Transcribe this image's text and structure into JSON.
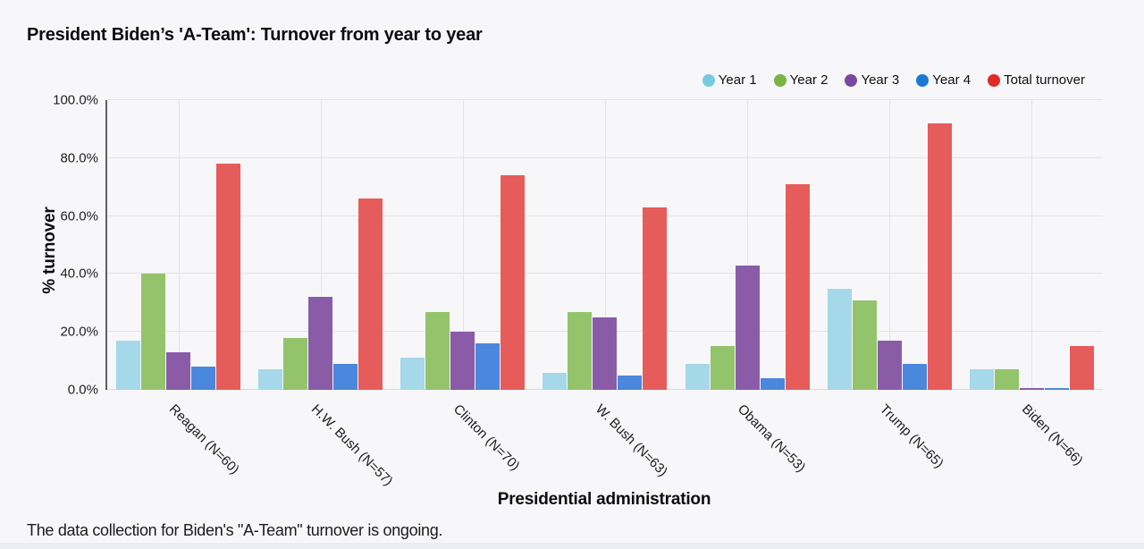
{
  "page": {
    "title": "President Biden’s 'A-Team': Turnover from year to year",
    "footnote": "The data collection for Biden's \"A-Team\" turnover is ongoing."
  },
  "chart_data": {
    "type": "bar",
    "title": "President Biden’s 'A-Team': Turnover from year to year",
    "xlabel": "Presidential administration",
    "ylabel": "% turnover",
    "ylim": [
      0,
      100
    ],
    "yticks": [
      "0.0%",
      "20.0%",
      "40.0%",
      "60.0%",
      "80.0%",
      "100.0%"
    ],
    "grid": true,
    "legend_position": "top-right",
    "categories": [
      "Reagan (N=60)",
      "H.W. Bush (N=57)",
      "Clinton (N=70)",
      "W. Bush (N=63)",
      "Obama (N=53)",
      "Trump (N=65)",
      "Biden (N=66)"
    ],
    "series": [
      {
        "name": "Year 1",
        "legend_color": "#79c9e2",
        "bar_color": "#a5d8e9",
        "values": [
          17,
          7,
          11,
          6,
          9,
          35,
          7
        ]
      },
      {
        "name": "Year 2",
        "legend_color": "#77b544",
        "bar_color": "#93c46c",
        "values": [
          40,
          18,
          27,
          27,
          15,
          31,
          7
        ]
      },
      {
        "name": "Year 3",
        "legend_color": "#7b4aa0",
        "bar_color": "#8a5ca8",
        "values": [
          13,
          32,
          20,
          25,
          43,
          17,
          0.5
        ]
      },
      {
        "name": "Year 4",
        "legend_color": "#1e78d2",
        "bar_color": "#4a87dd",
        "values": [
          8,
          9,
          16,
          5,
          4,
          9,
          0.5
        ]
      },
      {
        "name": "Total turnover",
        "legend_color": "#e12b26",
        "bar_color": "#e65c5a",
        "values": [
          78,
          66,
          74,
          63,
          71,
          92,
          15
        ]
      }
    ]
  }
}
